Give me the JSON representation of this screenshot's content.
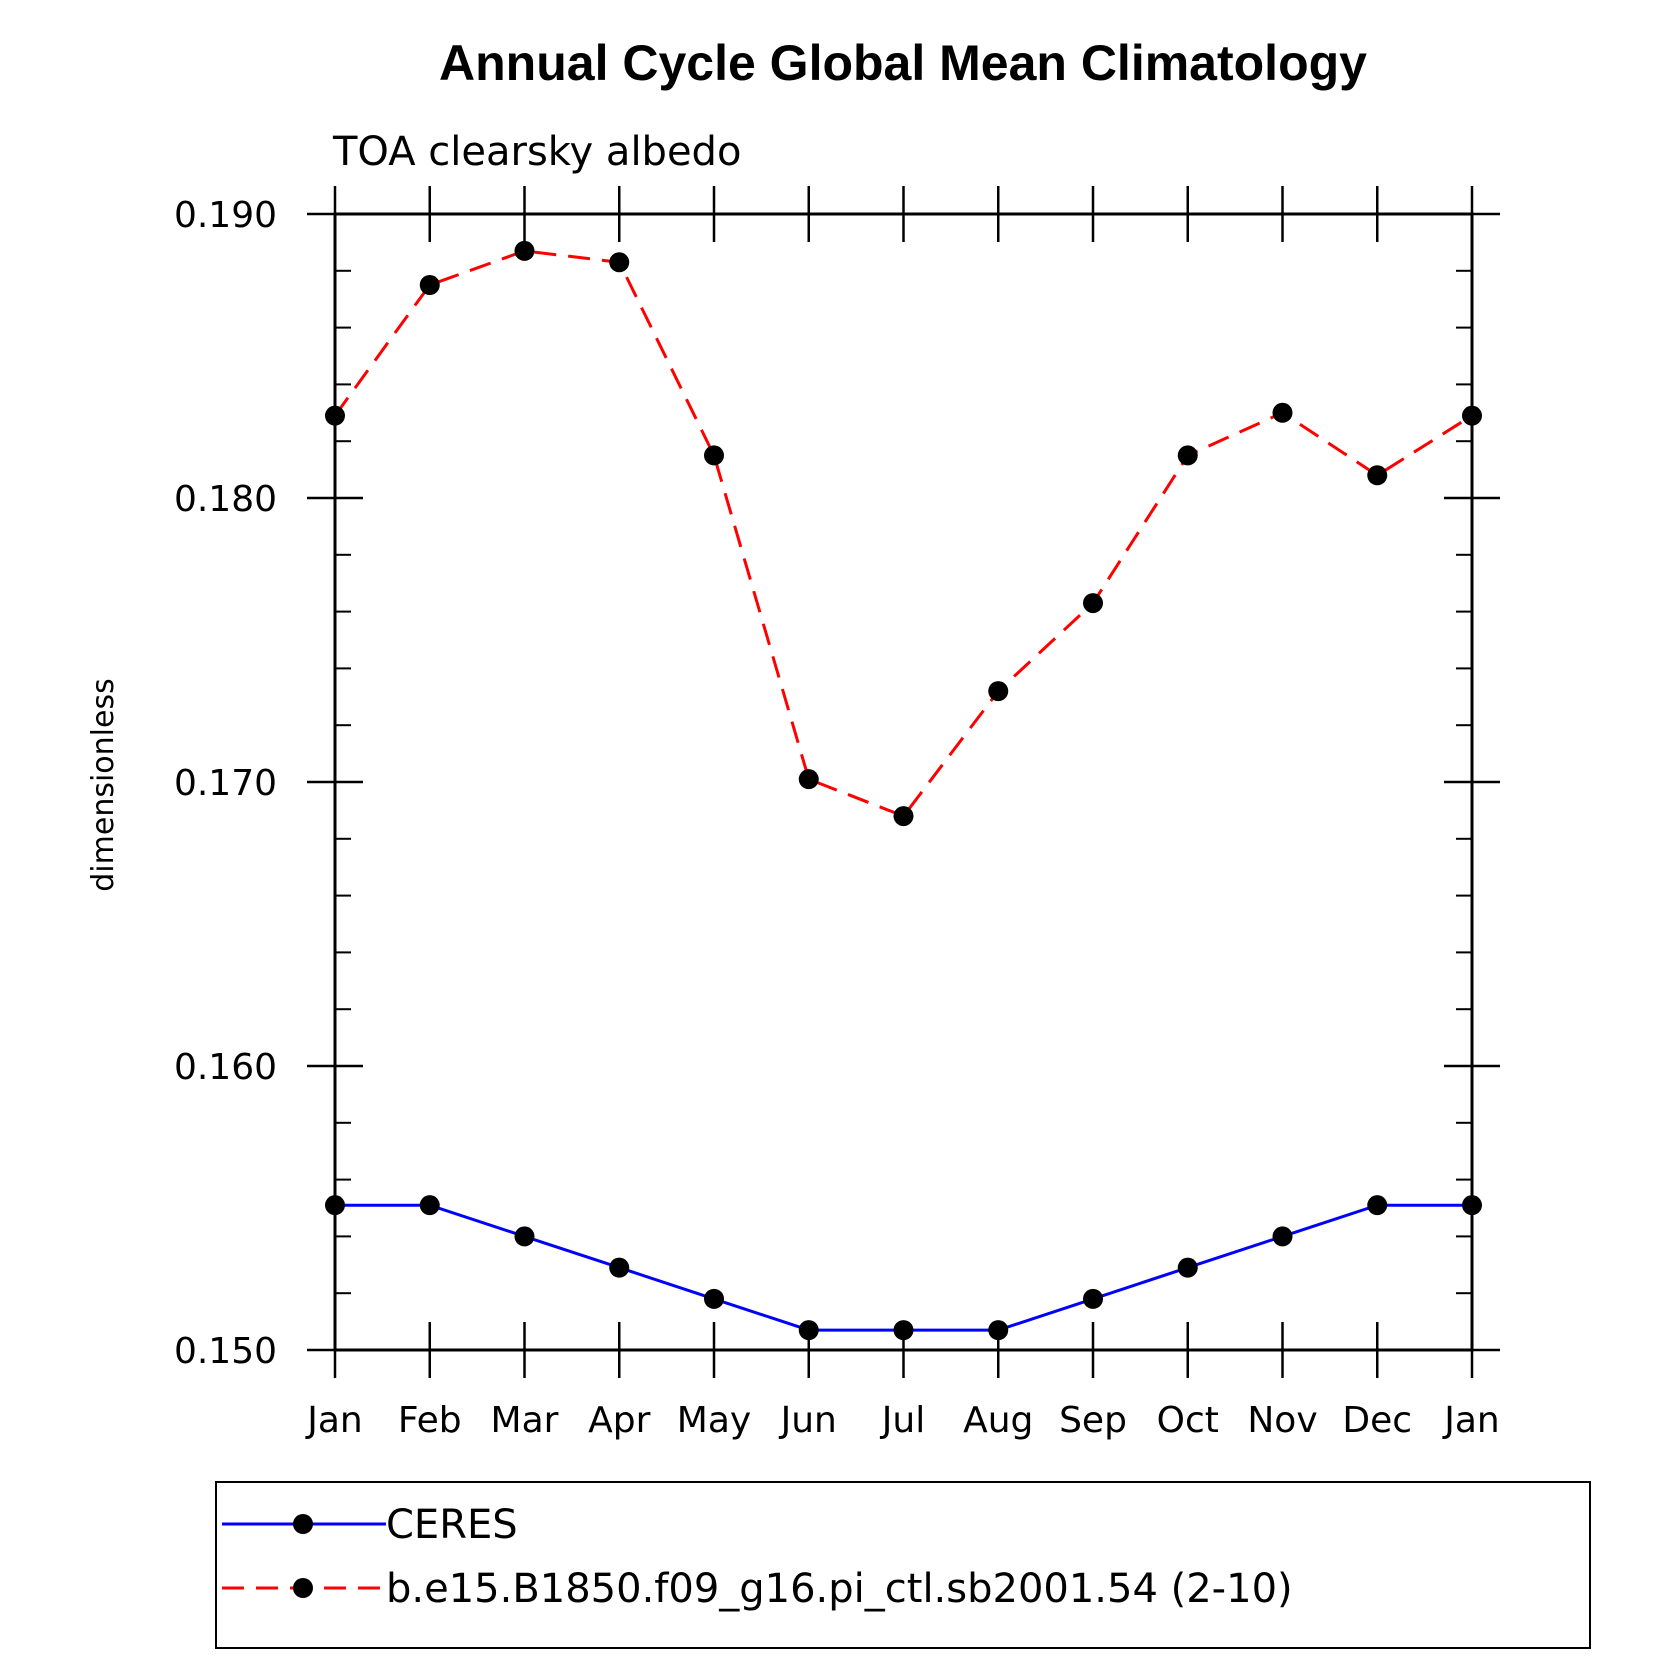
{
  "chart_data": {
    "type": "line",
    "title": "Annual Cycle Global Mean Climatology",
    "subtitle": "TOA clearsky albedo",
    "xlabel": "",
    "ylabel": "dimensionless",
    "categories": [
      "Jan",
      "Feb",
      "Mar",
      "Apr",
      "May",
      "Jun",
      "Jul",
      "Aug",
      "Sep",
      "Oct",
      "Nov",
      "Dec",
      "Jan"
    ],
    "ylim": [
      0.15,
      0.19
    ],
    "yticks": [
      "0.150",
      "0.160",
      "0.170",
      "0.180",
      "0.190"
    ],
    "grid": false,
    "legend_position": "bottom",
    "series": [
      {
        "name": "CERES",
        "color": "#0000ff",
        "dash": "solid",
        "marker": "filled-circle",
        "values": [
          0.1551,
          0.1551,
          0.154,
          0.1529,
          0.1518,
          0.1507,
          0.1507,
          0.1507,
          0.1518,
          0.1529,
          0.154,
          0.1551,
          0.1551
        ]
      },
      {
        "name": "b.e15.B1850.f09_g16.pi_ctl.sb2001.54 (2-10)",
        "color": "#ff0000",
        "dash": "dashed",
        "marker": "filled-circle",
        "values": [
          0.1829,
          0.1875,
          0.1887,
          0.1883,
          0.1815,
          0.1701,
          0.1688,
          0.1732,
          0.1763,
          0.1815,
          0.183,
          0.1808,
          0.1829
        ]
      }
    ]
  }
}
